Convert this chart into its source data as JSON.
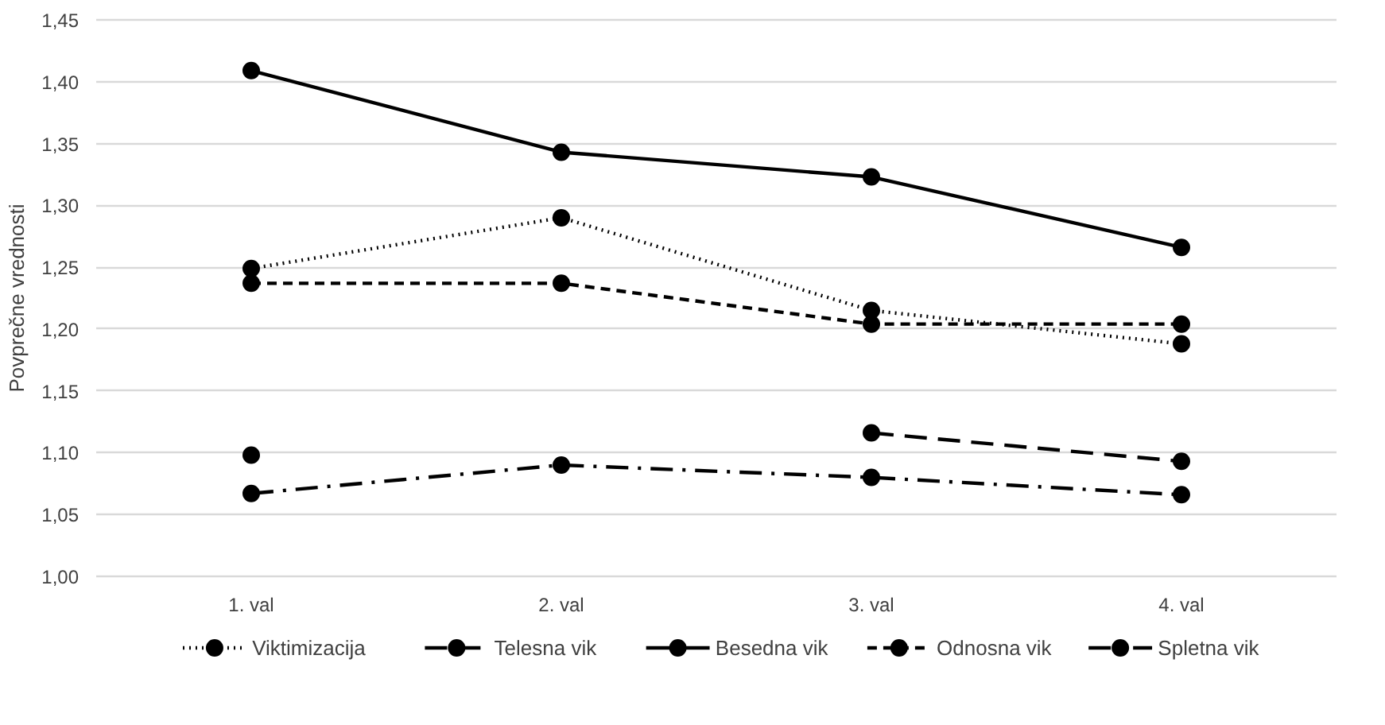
{
  "chart_data": {
    "type": "line",
    "ylabel": "Povprečne vrednosti",
    "categories": [
      "1. val",
      "2. val",
      "3. val",
      "4. val"
    ],
    "ylim": [
      1.0,
      1.45
    ],
    "yticks": [
      {
        "value": 1.0,
        "label": "1,00"
      },
      {
        "value": 1.05,
        "label": "1,05"
      },
      {
        "value": 1.1,
        "label": "1,10"
      },
      {
        "value": 1.15,
        "label": "1,15"
      },
      {
        "value": 1.2,
        "label": "1,20"
      },
      {
        "value": 1.25,
        "label": "1,25"
      },
      {
        "value": 1.3,
        "label": "1,30"
      },
      {
        "value": 1.35,
        "label": "1,35"
      },
      {
        "value": 1.4,
        "label": "1,40"
      },
      {
        "value": 1.45,
        "label": "1,45"
      }
    ],
    "grid": "y",
    "legend": "bottom",
    "marker": "circle",
    "series": [
      {
        "name": "Viktimizacija",
        "color": "#000000",
        "line_style": "dotted",
        "values": [
          1.249,
          1.29,
          1.215,
          1.188
        ]
      },
      {
        "name": "Telesna vik",
        "color": "#000000",
        "line_style": "longdash",
        "values": [
          1.098,
          null,
          1.116,
          1.093
        ]
      },
      {
        "name": "Besedna vik",
        "color": "#000000",
        "line_style": "solid",
        "values": [
          1.409,
          1.343,
          1.323,
          1.266
        ]
      },
      {
        "name": "Odnosna vik",
        "color": "#000000",
        "line_style": "dashed",
        "values": [
          1.237,
          1.237,
          1.204,
          1.204
        ]
      },
      {
        "name": "Spletna vik",
        "color": "#000000",
        "line_style": "dashdot",
        "values": [
          1.067,
          1.09,
          1.08,
          1.066
        ]
      }
    ]
  }
}
